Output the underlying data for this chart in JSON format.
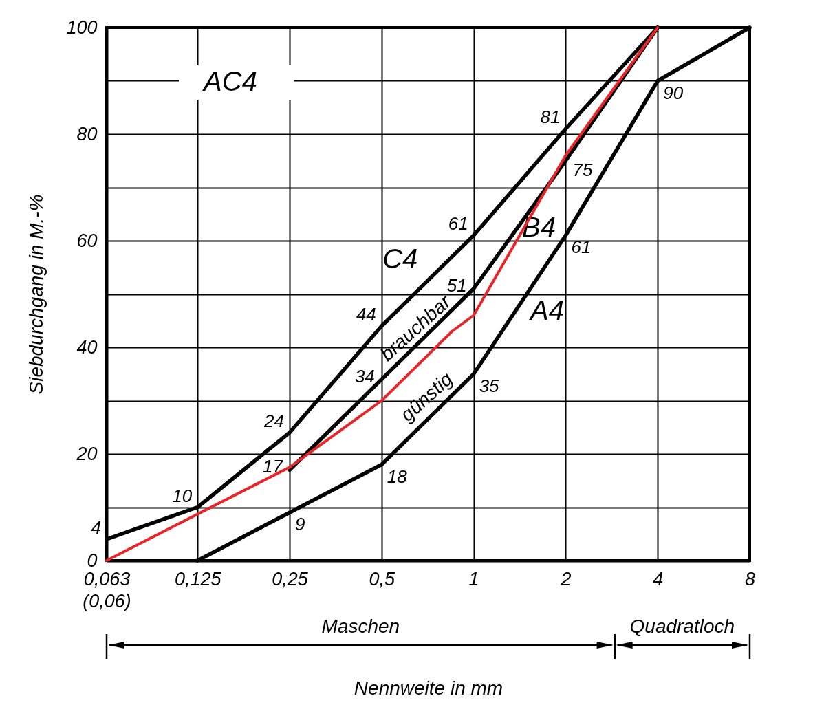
{
  "chart_data": {
    "type": "line",
    "title": "AC4",
    "xlabel": "Nennweite in mm",
    "ylabel": "Siebdurchgang  in  M.-%",
    "log": "x",
    "xlim": [
      0.063,
      8
    ],
    "ylim": [
      0,
      100
    ],
    "xticks": [
      {
        "value": 0.063,
        "label": "0,063\n(0,06)"
      },
      {
        "value": 0.125,
        "label": "0,125"
      },
      {
        "value": 0.25,
        "label": "0,25"
      },
      {
        "value": 0.5,
        "label": "0,5"
      },
      1,
      2,
      4,
      8
    ],
    "yticks": [
      0,
      {
        "value": 10,
        "label": null
      },
      20,
      {
        "value": 30,
        "label": null
      },
      40,
      {
        "value": 50,
        "label": null
      },
      60,
      {
        "value": 70,
        "label": null
      },
      80,
      {
        "value": 90,
        "label": null
      },
      100
    ],
    "grid": true,
    "line_style": "solid",
    "series": [
      {
        "name": "C4",
        "color": "#000000",
        "x": [
          0.063,
          0.125,
          0.25,
          0.5,
          1,
          2,
          4
        ],
        "values": [
          4,
          10,
          24,
          44,
          61,
          81,
          100
        ],
        "value_labels": [
          "4",
          "10",
          "24",
          "44",
          "61",
          "81",
          null
        ]
      },
      {
        "name": "B4",
        "color": "#000000",
        "x": [
          0.25,
          0.5,
          1,
          2,
          4
        ],
        "values": [
          17,
          34,
          51,
          75,
          100
        ],
        "value_labels": [
          "17",
          "34",
          "51",
          "75",
          null
        ]
      },
      {
        "name": "A4",
        "color": "#000000",
        "x": [
          0.125,
          0.25,
          0.5,
          1,
          2,
          4,
          8
        ],
        "values": [
          0,
          9,
          18,
          35,
          61,
          90,
          100
        ],
        "value_labels": [
          null,
          "9",
          "18",
          "35",
          "61",
          "90",
          null
        ]
      },
      {
        "color": "#e8262a",
        "x": [
          0.063,
          0.25,
          0.5,
          0.85,
          1,
          2,
          4
        ],
        "values": [
          0,
          17.5,
          30,
          43,
          46,
          76,
          100
        ]
      }
    ],
    "annotations": [
      "brauchbar",
      "günstig",
      "Maschen",
      "Quadratloch"
    ]
  }
}
